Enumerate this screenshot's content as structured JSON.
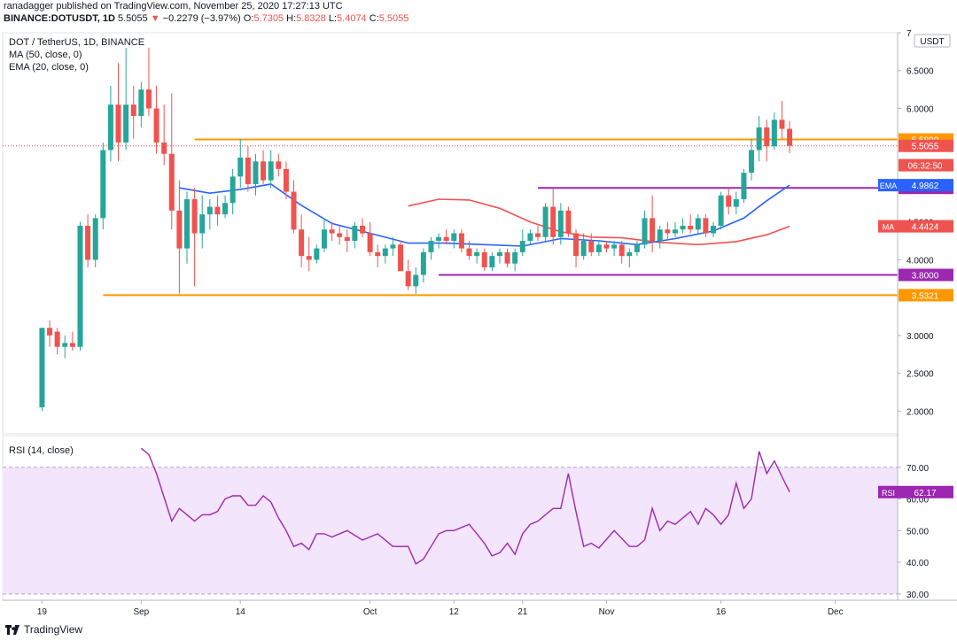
{
  "header": {
    "line1": "ranadagger published on TradingView.com, November 25, 2020 17:27:13 UTC",
    "symbol": "BINANCE:DOTUSDT, 1D",
    "last": "5.5055",
    "change_arrow": "▼",
    "change": "−0.2279 (−3.97%)",
    "o_label": "O:",
    "o": "5.7305",
    "h_label": "H:",
    "h": "5.8328",
    "l_label": "L:",
    "l": "5.4074",
    "c_label": "C:",
    "c": "5.5055"
  },
  "legend": {
    "title": "DOT / TetherUS, 1D, BINANCE",
    "ma": "MA (50, close, 0)",
    "ema": "EMA (20, close, 0)"
  },
  "rsi_legend": "RSI (14, close)",
  "footer": {
    "brand": "TradingView"
  },
  "colors": {
    "up": "#26a69a",
    "down": "#ef5350",
    "ema": "#2962ff",
    "ma": "#ef5350",
    "orange": "#ff9800",
    "purple": "#9c27b0",
    "rsi_line": "#9c27b0",
    "rsi_band": "#f3e5fb"
  },
  "chart_data": [
    {
      "type": "candlestick",
      "currency_label": "USDT",
      "ylim": [
        1.7,
        7.0
      ],
      "y_ticks": [
        "7",
        "6.5000",
        "6.0000",
        "5.5000",
        "5.0000",
        "4.5000",
        "4.0000",
        "3.5000",
        "3.0000",
        "2.5000",
        "2.0000"
      ],
      "x_ticks": [
        "19",
        "Sep",
        "14",
        "Oct",
        "12",
        "21",
        "Nov",
        "16",
        "Dec"
      ],
      "x_tick_dates": [
        "2020-08-19",
        "2020-09-01",
        "2020-09-14",
        "2020-10-01",
        "2020-10-12",
        "2020-10-21",
        "2020-11-01",
        "2020-11-16",
        "2020-12-01"
      ],
      "x_range": [
        "2020-08-15",
        "2020-12-08"
      ],
      "candles": [
        [
          "2020-08-19",
          2.05,
          3.1,
          2.0,
          3.1
        ],
        [
          "2020-08-20",
          3.1,
          3.2,
          2.85,
          3.0
        ],
        [
          "2020-08-21",
          3.05,
          3.1,
          2.75,
          2.85
        ],
        [
          "2020-08-22",
          2.85,
          3.0,
          2.7,
          2.9
        ],
        [
          "2020-08-23",
          2.9,
          3.05,
          2.8,
          2.85
        ],
        [
          "2020-08-24",
          2.85,
          4.5,
          2.8,
          4.45
        ],
        [
          "2020-08-25",
          4.45,
          4.6,
          3.9,
          4.0
        ],
        [
          "2020-08-26",
          4.0,
          4.6,
          3.9,
          4.55
        ],
        [
          "2020-08-27",
          4.55,
          5.55,
          4.4,
          5.45
        ],
        [
          "2020-08-28",
          5.45,
          6.3,
          5.3,
          6.05
        ],
        [
          "2020-08-29",
          6.05,
          6.6,
          5.3,
          5.55
        ],
        [
          "2020-08-30",
          5.55,
          6.8,
          5.45,
          6.05
        ],
        [
          "2020-08-31",
          6.05,
          6.3,
          5.6,
          5.9
        ],
        [
          "2020-09-01",
          5.9,
          6.35,
          5.75,
          6.25
        ],
        [
          "2020-09-02",
          6.25,
          6.8,
          5.9,
          6.0
        ],
        [
          "2020-09-03",
          6.0,
          6.3,
          5.4,
          5.55
        ],
        [
          "2020-09-04",
          5.55,
          6.05,
          5.25,
          5.4
        ],
        [
          "2020-09-05",
          5.4,
          6.2,
          4.4,
          4.65
        ],
        [
          "2020-09-06",
          4.65,
          5.05,
          3.55,
          4.15
        ],
        [
          "2020-09-07",
          4.15,
          4.9,
          3.95,
          4.8
        ],
        [
          "2020-09-08",
          4.8,
          4.95,
          3.65,
          4.35
        ],
        [
          "2020-09-09",
          4.35,
          4.85,
          4.15,
          4.6
        ],
        [
          "2020-09-10",
          4.6,
          4.8,
          4.4,
          4.7
        ],
        [
          "2020-09-11",
          4.7,
          4.85,
          4.45,
          4.6
        ],
        [
          "2020-09-12",
          4.6,
          4.85,
          4.55,
          4.75
        ],
        [
          "2020-09-13",
          4.75,
          5.2,
          4.6,
          5.1
        ],
        [
          "2020-09-14",
          5.1,
          5.6,
          4.95,
          5.35
        ],
        [
          "2020-09-15",
          5.35,
          5.5,
          4.9,
          5.0
        ],
        [
          "2020-09-16",
          5.0,
          5.4,
          4.85,
          5.3
        ],
        [
          "2020-09-17",
          5.3,
          5.45,
          5.0,
          5.05
        ],
        [
          "2020-09-18",
          5.05,
          5.45,
          4.95,
          5.3
        ],
        [
          "2020-09-19",
          5.3,
          5.4,
          5.1,
          5.2
        ],
        [
          "2020-09-20",
          5.2,
          5.3,
          4.8,
          4.9
        ],
        [
          "2020-09-21",
          4.9,
          5.05,
          4.35,
          4.4
        ],
        [
          "2020-09-22",
          4.4,
          4.6,
          3.9,
          4.05
        ],
        [
          "2020-09-23",
          4.05,
          4.3,
          3.85,
          4.0
        ],
        [
          "2020-09-24",
          4.0,
          4.2,
          3.95,
          4.15
        ],
        [
          "2020-09-25",
          4.15,
          4.55,
          4.1,
          4.4
        ],
        [
          "2020-09-26",
          4.4,
          4.5,
          4.25,
          4.35
        ],
        [
          "2020-09-27",
          4.35,
          4.45,
          4.2,
          4.3
        ],
        [
          "2020-09-28",
          4.3,
          4.4,
          4.1,
          4.25
        ],
        [
          "2020-09-29",
          4.25,
          4.5,
          4.15,
          4.45
        ],
        [
          "2020-09-30",
          4.45,
          4.55,
          4.3,
          4.35
        ],
        [
          "2020-10-01",
          4.35,
          4.5,
          4.05,
          4.1
        ],
        [
          "2020-10-02",
          4.1,
          4.2,
          3.9,
          4.05
        ],
        [
          "2020-10-03",
          4.05,
          4.2,
          3.95,
          4.15
        ],
        [
          "2020-10-04",
          4.15,
          4.3,
          4.05,
          4.2
        ],
        [
          "2020-10-05",
          4.2,
          4.25,
          3.85,
          3.85
        ],
        [
          "2020-10-06",
          3.85,
          4.0,
          3.6,
          3.65
        ],
        [
          "2020-10-07",
          3.65,
          3.9,
          3.55,
          3.8
        ],
        [
          "2020-10-08",
          3.8,
          4.15,
          3.7,
          4.1
        ],
        [
          "2020-10-09",
          4.1,
          4.3,
          4.0,
          4.25
        ],
        [
          "2020-10-10",
          4.25,
          4.35,
          4.15,
          4.3
        ],
        [
          "2020-10-11",
          4.3,
          4.4,
          4.2,
          4.25
        ],
        [
          "2020-10-12",
          4.25,
          4.4,
          4.15,
          4.35
        ],
        [
          "2020-10-13",
          4.35,
          4.4,
          4.1,
          4.15
        ],
        [
          "2020-10-14",
          4.15,
          4.25,
          4.0,
          4.05
        ],
        [
          "2020-10-15",
          4.05,
          4.15,
          3.95,
          4.1
        ],
        [
          "2020-10-16",
          4.1,
          4.15,
          3.85,
          3.9
        ],
        [
          "2020-10-17",
          3.9,
          4.1,
          3.85,
          4.05
        ],
        [
          "2020-10-18",
          4.05,
          4.15,
          3.95,
          4.1
        ],
        [
          "2020-10-19",
          4.1,
          4.15,
          3.9,
          3.95
        ],
        [
          "2020-10-20",
          3.95,
          4.15,
          3.85,
          4.1
        ],
        [
          "2020-10-21",
          4.1,
          4.4,
          4.05,
          4.25
        ],
        [
          "2020-10-22",
          4.25,
          4.4,
          4.2,
          4.35
        ],
        [
          "2020-10-23",
          4.35,
          4.45,
          4.25,
          4.3
        ],
        [
          "2020-10-24",
          4.3,
          4.75,
          4.25,
          4.7
        ],
        [
          "2020-10-25",
          4.7,
          4.95,
          4.2,
          4.3
        ],
        [
          "2020-10-26",
          4.3,
          4.75,
          4.2,
          4.65
        ],
        [
          "2020-10-27",
          4.65,
          4.7,
          4.3,
          4.35
        ],
        [
          "2020-10-28",
          4.35,
          4.4,
          3.9,
          4.05
        ],
        [
          "2020-10-29",
          4.05,
          4.35,
          4.0,
          4.25
        ],
        [
          "2020-10-30",
          4.25,
          4.35,
          4.05,
          4.1
        ],
        [
          "2020-10-31",
          4.1,
          4.25,
          4.05,
          4.2
        ],
        [
          "2020-11-01",
          4.2,
          4.25,
          4.1,
          4.15
        ],
        [
          "2020-11-02",
          4.15,
          4.25,
          4.05,
          4.2
        ],
        [
          "2020-11-03",
          4.2,
          4.25,
          3.95,
          4.05
        ],
        [
          "2020-11-04",
          4.05,
          4.15,
          3.9,
          4.1
        ],
        [
          "2020-11-05",
          4.1,
          4.25,
          4.05,
          4.2
        ],
        [
          "2020-11-06",
          4.2,
          4.65,
          4.15,
          4.55
        ],
        [
          "2020-11-07",
          4.55,
          4.85,
          4.1,
          4.25
        ],
        [
          "2020-11-08",
          4.25,
          4.45,
          4.15,
          4.4
        ],
        [
          "2020-11-09",
          4.4,
          4.5,
          4.25,
          4.35
        ],
        [
          "2020-11-10",
          4.35,
          4.5,
          4.3,
          4.4
        ],
        [
          "2020-11-11",
          4.4,
          4.55,
          4.35,
          4.45
        ],
        [
          "2020-11-12",
          4.45,
          4.6,
          4.35,
          4.4
        ],
        [
          "2020-11-13",
          4.4,
          4.6,
          4.35,
          4.55
        ],
        [
          "2020-11-14",
          4.55,
          4.6,
          4.3,
          4.35
        ],
        [
          "2020-11-15",
          4.35,
          4.5,
          4.3,
          4.45
        ],
        [
          "2020-11-16",
          4.45,
          4.9,
          4.4,
          4.85
        ],
        [
          "2020-11-17",
          4.85,
          4.95,
          4.6,
          4.7
        ],
        [
          "2020-11-18",
          4.7,
          4.9,
          4.6,
          4.8
        ],
        [
          "2020-11-19",
          4.8,
          5.2,
          4.75,
          5.15
        ],
        [
          "2020-11-20",
          5.15,
          5.6,
          5.05,
          5.45
        ],
        [
          "2020-11-21",
          5.45,
          5.9,
          5.3,
          5.75
        ],
        [
          "2020-11-22",
          5.75,
          5.85,
          5.3,
          5.5
        ],
        [
          "2020-11-23",
          5.5,
          5.95,
          5.45,
          5.85
        ],
        [
          "2020-11-24",
          5.85,
          6.1,
          5.6,
          5.73
        ],
        [
          "2020-11-25",
          5.7305,
          5.8328,
          5.4074,
          5.5055
        ]
      ],
      "ema20": {
        "name": "EMA",
        "x": [
          "2020-09-06",
          "2020-09-10",
          "2020-09-14",
          "2020-09-18",
          "2020-09-22",
          "2020-09-26",
          "2020-10-01",
          "2020-10-06",
          "2020-10-11",
          "2020-10-16",
          "2020-10-21",
          "2020-10-26",
          "2020-10-31",
          "2020-11-05",
          "2020-11-10",
          "2020-11-15",
          "2020-11-19",
          "2020-11-22",
          "2020-11-25"
        ],
        "values": [
          4.95,
          4.88,
          4.93,
          5.0,
          4.72,
          4.48,
          4.35,
          4.22,
          4.22,
          4.2,
          4.18,
          4.28,
          4.25,
          4.2,
          4.28,
          4.38,
          4.55,
          4.78,
          4.9862
        ]
      },
      "ma50": {
        "name": "MA",
        "x": [
          "2020-10-06",
          "2020-10-10",
          "2020-10-14",
          "2020-10-18",
          "2020-10-22",
          "2020-10-26",
          "2020-10-30",
          "2020-11-03",
          "2020-11-08",
          "2020-11-13",
          "2020-11-18",
          "2020-11-22",
          "2020-11-25"
        ],
        "values": [
          4.71,
          4.8,
          4.79,
          4.68,
          4.5,
          4.37,
          4.3,
          4.29,
          4.23,
          4.2,
          4.24,
          4.33,
          4.4424
        ]
      },
      "horizontal_lines": [
        {
          "price": 5.5899,
          "label": "5.5899",
          "color": "orange",
          "from": "2020-09-08",
          "to": "2020-12-08"
        },
        {
          "price": 4.95,
          "label": "4.9500",
          "color": "purple",
          "from": "2020-10-23",
          "to": "2020-12-08"
        },
        {
          "price": 3.8,
          "label": "3.8000",
          "color": "purple",
          "from": "2020-10-10",
          "to": "2020-12-08"
        },
        {
          "price": 3.5321,
          "label": "3.5321",
          "color": "orange",
          "from": "2020-08-27",
          "to": "2020-12-08"
        }
      ],
      "price_badges": [
        {
          "price": 5.5055,
          "label": "5.5055",
          "kind": "last"
        },
        {
          "price": 5.25,
          "label": "06:32:50",
          "kind": "countdown"
        },
        {
          "price": 4.9862,
          "label": "4.9862",
          "name": "EMA",
          "kind": "ema"
        },
        {
          "price": 4.4424,
          "label": "4.4424",
          "name": "MA",
          "kind": "ma"
        }
      ]
    },
    {
      "type": "line",
      "name": "RSI",
      "ylim": [
        28,
        80
      ],
      "y_ticks": [
        "70.00",
        "60.00",
        "50.00",
        "40.00",
        "30.00"
      ],
      "band": [
        30,
        70
      ],
      "x": [
        "2020-09-01",
        "2020-09-02",
        "2020-09-03",
        "2020-09-05",
        "2020-09-06",
        "2020-09-07",
        "2020-09-08",
        "2020-09-09",
        "2020-09-10",
        "2020-09-11",
        "2020-09-12",
        "2020-09-13",
        "2020-09-14",
        "2020-09-15",
        "2020-09-16",
        "2020-09-17",
        "2020-09-18",
        "2020-09-19",
        "2020-09-20",
        "2020-09-21",
        "2020-09-22",
        "2020-09-23",
        "2020-09-24",
        "2020-09-25",
        "2020-09-26",
        "2020-09-28",
        "2020-09-30",
        "2020-10-02",
        "2020-10-04",
        "2020-10-06",
        "2020-10-07",
        "2020-10-08",
        "2020-10-09",
        "2020-10-10",
        "2020-10-11",
        "2020-10-12",
        "2020-10-14",
        "2020-10-16",
        "2020-10-17",
        "2020-10-18",
        "2020-10-19",
        "2020-10-20",
        "2020-10-21",
        "2020-10-22",
        "2020-10-23",
        "2020-10-24",
        "2020-10-25",
        "2020-10-26",
        "2020-10-27",
        "2020-10-28",
        "2020-10-29",
        "2020-10-30",
        "2020-10-31",
        "2020-11-02",
        "2020-11-04",
        "2020-11-05",
        "2020-11-06",
        "2020-11-07",
        "2020-11-08",
        "2020-11-09",
        "2020-11-10",
        "2020-11-11",
        "2020-11-12",
        "2020-11-13",
        "2020-11-14",
        "2020-11-15",
        "2020-11-16",
        "2020-11-17",
        "2020-11-18",
        "2020-11-19",
        "2020-11-20",
        "2020-11-21",
        "2020-11-22",
        "2020-11-23",
        "2020-11-24",
        "2020-11-25"
      ],
      "values": [
        76,
        74,
        68,
        53,
        57,
        55,
        53,
        55,
        55,
        56,
        60,
        61,
        61,
        58,
        58,
        61,
        59,
        54,
        50,
        45,
        46,
        44,
        49,
        49,
        48,
        50,
        47,
        49,
        45,
        45,
        39.5,
        41,
        45,
        49,
        50,
        50,
        52,
        46,
        42,
        43,
        46,
        42.5,
        49,
        52,
        53,
        55,
        57,
        57,
        68,
        56,
        45,
        46,
        44.5,
        50,
        45,
        45,
        47,
        57,
        50,
        53,
        52,
        54,
        56,
        52,
        57,
        55,
        52,
        55,
        65,
        57,
        60,
        75,
        68,
        72,
        67,
        62.17
      ],
      "last_label": "62.17",
      "last_name": "RSI"
    }
  ]
}
